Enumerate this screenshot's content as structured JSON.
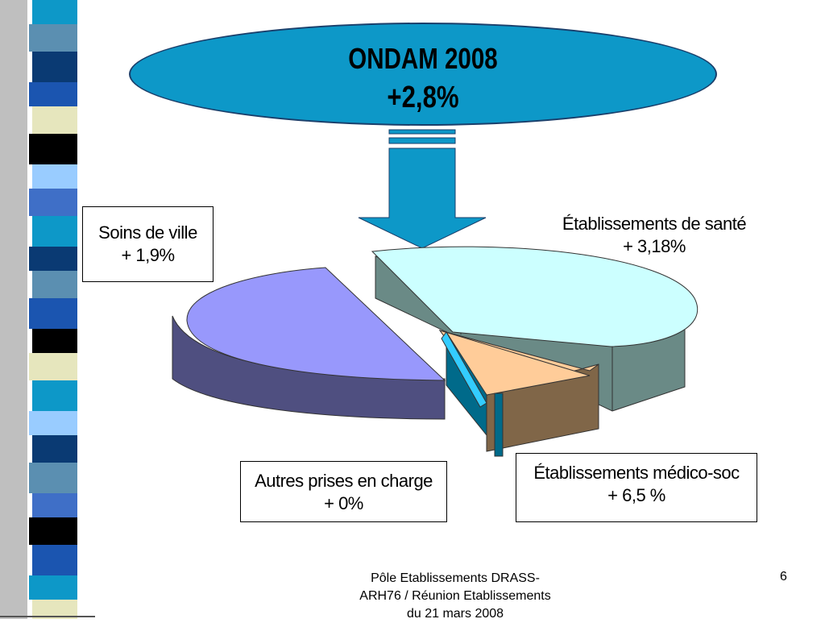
{
  "header": {
    "title": "ONDAM  2008",
    "total": "+2,8%"
  },
  "segments": [
    {
      "label": "Soins de ville",
      "value": "+ 1,9%",
      "color": "#9898fc",
      "side_color": "#4f4f80"
    },
    {
      "label": "Établissements de santé",
      "value": "+ 3,18%",
      "color": "#ccffff",
      "side_color": "#6a8a86"
    },
    {
      "label": "Autres prises en charge",
      "value": "+ 0%",
      "color": "#33ccff",
      "side_color": "#006a8a"
    },
    {
      "label": "Établissements médico-soc",
      "value": "+ 6,5 %",
      "color": "#ffcc99",
      "side_color": "#806648"
    }
  ],
  "colors": {
    "ellipse": "#0d98c8",
    "arrow": "#0d98c8",
    "stripe_palette": [
      "#0d98c8",
      "#5b8fb1",
      "#0a3a73",
      "#1b55b0",
      "#e6e6bd",
      "#000000",
      "#99ccff",
      "#3f6fc7"
    ]
  },
  "footer": {
    "line1": "Pôle Etablissements DRASS-",
    "line2": "ARH76 / Réunion Etablissements",
    "line3": "du 21 mars 2008",
    "page": "6"
  }
}
